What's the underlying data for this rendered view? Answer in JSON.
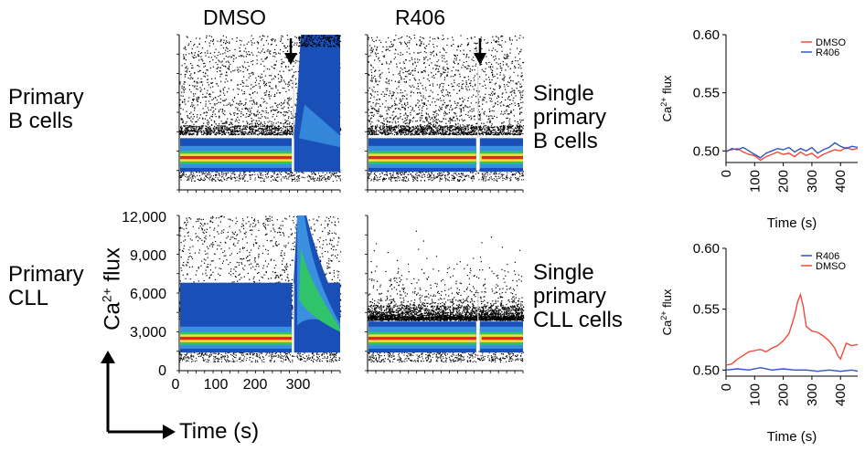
{
  "columns": {
    "left": "DMSO",
    "right": "R406"
  },
  "rows": {
    "top_left_label": [
      "Primary",
      "B cells"
    ],
    "top_right_label": [
      "Single",
      "primary",
      "B cells"
    ],
    "bottom_left_label": [
      "Primary",
      "CLL"
    ],
    "bottom_right_label": [
      "Single",
      "primary",
      "CLL cells"
    ]
  },
  "axes": {
    "y_label_main": "Ca",
    "y_label_sup": "2+",
    "y_label_tail": " flux",
    "x_label": "Time (s)",
    "y_ticks": [
      "12,000",
      "9,000",
      "6,000",
      "3,000",
      "0"
    ],
    "x_ticks": [
      "0",
      "100",
      "200",
      "300"
    ]
  },
  "colors": {
    "DMSO": "#f04a3a",
    "R406": "#2f55c8",
    "density_high": "#e8241c",
    "density_mid": "#2fc46a",
    "density_low": "#1a4fb8"
  },
  "chart_data": [
    {
      "type": "scatter",
      "title": "DMSO",
      "row": "Primary B cells",
      "xlim": [
        0,
        380
      ],
      "ylim": [
        0,
        12000
      ],
      "stimulus_time": 270,
      "baseline_flux": 2500,
      "peak_flux": 12000
    },
    {
      "type": "scatter",
      "title": "R406",
      "row": "Single primary B cells",
      "xlim": [
        0,
        380
      ],
      "ylim": [
        0,
        12000
      ],
      "stimulus_time": 270,
      "baseline_flux": 2500,
      "peak_flux": 2500
    },
    {
      "type": "scatter",
      "title": "DMSO",
      "row": "Primary CLL",
      "xlim": [
        0,
        380
      ],
      "ylim": [
        0,
        12000
      ],
      "xlabel": "Time (s)",
      "ylabel": "Ca2+ flux",
      "x_ticks": [
        0,
        100,
        200,
        300
      ],
      "y_ticks": [
        0,
        3000,
        6000,
        9000,
        12000
      ],
      "stimulus_time": 270,
      "baseline_flux": 2500,
      "peak_flux": 12000
    },
    {
      "type": "scatter",
      "title": "R406",
      "row": "Single primary CLL cells",
      "xlim": [
        0,
        380
      ],
      "ylim": [
        0,
        12000
      ],
      "stimulus_time": 270,
      "baseline_flux": 2500,
      "peak_flux": 2500
    },
    {
      "type": "line",
      "xlabel": "Time (s)",
      "ylabel": "Ca2+ flux",
      "xlim": [
        0,
        460
      ],
      "ylim": [
        0.49,
        0.6
      ],
      "x_ticks": [
        0,
        100,
        200,
        300,
        400
      ],
      "y_ticks": [
        0.5,
        0.55,
        0.6
      ],
      "y_tick_labels": [
        "0.50",
        "0.55",
        "0.60"
      ],
      "legend": [
        "DMSO",
        "R406"
      ],
      "legend_position": "top-right",
      "series": [
        {
          "name": "DMSO",
          "x": [
            0,
            20,
            40,
            60,
            80,
            100,
            120,
            140,
            160,
            180,
            200,
            220,
            240,
            260,
            280,
            300,
            320,
            340,
            360,
            380,
            400,
            420,
            440,
            460
          ],
          "values": [
            0.5,
            0.501,
            0.502,
            0.499,
            0.497,
            0.496,
            0.492,
            0.495,
            0.497,
            0.499,
            0.497,
            0.498,
            0.495,
            0.499,
            0.496,
            0.498,
            0.494,
            0.497,
            0.499,
            0.501,
            0.5,
            0.503,
            0.501,
            0.502
          ]
        },
        {
          "name": "R406",
          "x": [
            0,
            20,
            40,
            60,
            80,
            100,
            120,
            140,
            160,
            180,
            200,
            220,
            240,
            260,
            280,
            300,
            320,
            340,
            360,
            380,
            400,
            420,
            440,
            460
          ],
          "values": [
            0.499,
            0.502,
            0.501,
            0.503,
            0.5,
            0.497,
            0.494,
            0.498,
            0.5,
            0.502,
            0.501,
            0.503,
            0.499,
            0.502,
            0.5,
            0.503,
            0.498,
            0.501,
            0.503,
            0.507,
            0.504,
            0.502,
            0.504,
            0.503
          ]
        }
      ]
    },
    {
      "type": "line",
      "xlabel": "Time (s)",
      "ylabel": "Ca2+ flux",
      "xlim": [
        0,
        460
      ],
      "ylim": [
        0.495,
        0.6
      ],
      "x_ticks": [
        0,
        100,
        200,
        300,
        400
      ],
      "y_ticks": [
        0.5,
        0.55,
        0.6
      ],
      "y_tick_labels": [
        "0.50",
        "0.55",
        "0.60"
      ],
      "legend": [
        "R406",
        "DMSO"
      ],
      "legend_position": "top-right",
      "series": [
        {
          "name": "DMSO",
          "x": [
            0,
            20,
            40,
            60,
            80,
            100,
            120,
            140,
            160,
            180,
            200,
            220,
            240,
            250,
            260,
            270,
            280,
            300,
            320,
            340,
            360,
            380,
            390,
            400,
            420,
            440,
            460
          ],
          "values": [
            0.504,
            0.505,
            0.509,
            0.512,
            0.515,
            0.516,
            0.517,
            0.515,
            0.518,
            0.52,
            0.524,
            0.53,
            0.545,
            0.556,
            0.562,
            0.552,
            0.536,
            0.532,
            0.531,
            0.528,
            0.524,
            0.518,
            0.512,
            0.509,
            0.522,
            0.52,
            0.521
          ]
        },
        {
          "name": "R406",
          "x": [
            0,
            40,
            80,
            120,
            160,
            200,
            240,
            280,
            320,
            360,
            400,
            440,
            460
          ],
          "values": [
            0.5,
            0.501,
            0.5,
            0.502,
            0.5,
            0.501,
            0.5,
            0.5,
            0.499,
            0.5,
            0.499,
            0.5,
            0.499
          ]
        }
      ]
    }
  ]
}
